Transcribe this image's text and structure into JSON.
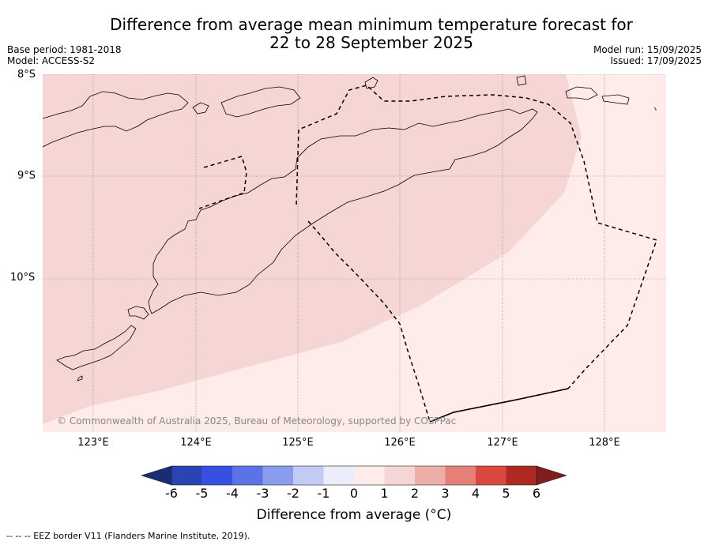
{
  "title_line1": "Difference from average mean minimum temperature forecast for",
  "title_line2": "22 to 28 September 2025",
  "base_period": "Base period: 1981-2018",
  "model": "Model: ACCESS-S2",
  "model_run": "Model run: 15/09/2025",
  "issued": "Issued: 17/09/2025",
  "lat_labels": [
    "8°S",
    "9°S",
    "10°S"
  ],
  "lon_labels": [
    "123°E",
    "124°E",
    "125°E",
    "126°E",
    "127°E",
    "128°E"
  ],
  "copyright": "© Commonwealth of Australia 2025, Bureau of Meteorology, supported by COSPPac",
  "colorbar": {
    "ticks": [
      "-6",
      "-5",
      "-4",
      "-3",
      "-2",
      "-1",
      "0",
      "1",
      "2",
      "3",
      "4",
      "5",
      "6"
    ],
    "colors": [
      "#1b2c74",
      "#2a44b4",
      "#3651e0",
      "#5c73e6",
      "#8a9cee",
      "#c3cbf5",
      "#ebedfb",
      "#fdecea",
      "#f6d6d4",
      "#eeaea8",
      "#e57f77",
      "#d9473f",
      "#ad2a22",
      "#7e1f1c"
    ],
    "label": "Difference from average (°C)"
  },
  "footnote": "--  --  -- EEZ border V11 (Flanders Marine Institute, 2019).",
  "map_fill": {
    "anomaly_1_to_2": "#f6d6d4",
    "anomaly_0_to_1": "#fdecea"
  }
}
